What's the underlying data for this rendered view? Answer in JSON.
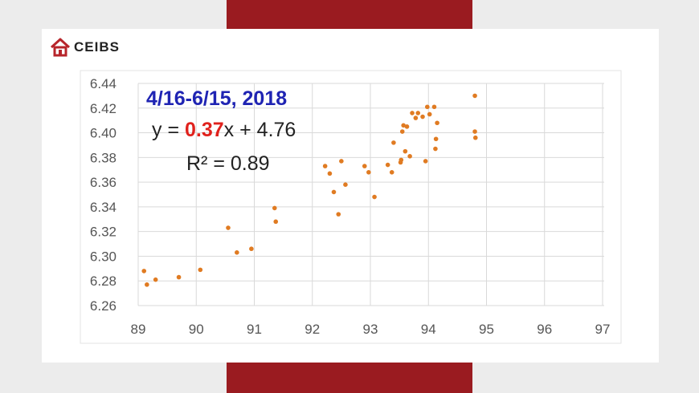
{
  "logo": {
    "text": "CEIBS",
    "icon": "house-icon",
    "color": "#b7252b"
  },
  "colors": {
    "accent_bar": "#9a1b20",
    "points": "#e07b22",
    "trendline": "#1f1fa8",
    "title": "#1f24b3",
    "slope": "#e0211c"
  },
  "chart_data": {
    "type": "scatter",
    "title": "4/16-6/15, 2018",
    "equation": {
      "prefix": "y = ",
      "slope": "0.37",
      "suffix": "x + 4.76"
    },
    "r2": "R² = 0.89",
    "xlim": [
      89,
      97
    ],
    "ylim": [
      6.26,
      6.44
    ],
    "x_ticks": [
      "89",
      "90",
      "91",
      "92",
      "93",
      "94",
      "95",
      "96",
      "97"
    ],
    "y_ticks": [
      "6.26",
      "6.28",
      "6.30",
      "6.32",
      "6.34",
      "6.36",
      "6.38",
      "6.40",
      "6.42",
      "6.44"
    ],
    "grid": true,
    "trendline": {
      "slope": 0.37,
      "intercept": 4.76,
      "x_range": [
        89.1,
        94.8
      ]
    },
    "x": [
      89.1,
      89.15,
      89.3,
      89.7,
      90.07,
      90.55,
      90.7,
      90.95,
      91.35,
      91.37,
      92.22,
      92.3,
      92.37,
      92.45,
      92.5,
      92.57,
      92.9,
      92.97,
      93.07,
      93.3,
      93.37,
      93.4,
      93.52,
      93.53,
      93.55,
      93.57,
      93.6,
      93.63,
      93.68,
      93.72,
      93.78,
      93.82,
      93.9,
      93.95,
      93.98,
      94.02,
      94.1,
      94.12,
      94.13,
      94.15,
      94.8,
      94.8,
      94.81
    ],
    "y": [
      6.288,
      6.277,
      6.281,
      6.283,
      6.289,
      6.323,
      6.303,
      6.306,
      6.339,
      6.328,
      6.373,
      6.367,
      6.352,
      6.334,
      6.377,
      6.358,
      6.373,
      6.368,
      6.348,
      6.374,
      6.368,
      6.392,
      6.376,
      6.378,
      6.401,
      6.406,
      6.385,
      6.405,
      6.381,
      6.416,
      6.412,
      6.416,
      6.413,
      6.377,
      6.421,
      6.415,
      6.421,
      6.387,
      6.395,
      6.408,
      6.43,
      6.401,
      6.396
    ]
  }
}
